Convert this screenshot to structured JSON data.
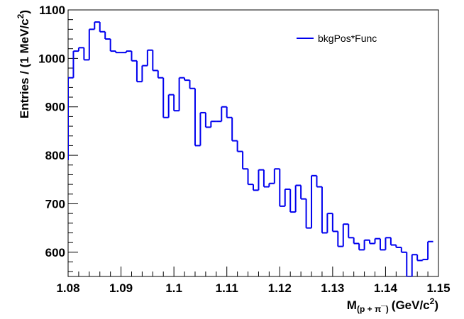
{
  "chart_data": {
    "type": "line",
    "title": "",
    "xlabel": "M",
    "xlabel_sub": "(p + π¯)",
    "xlabel_unit": "(GeV/c",
    "xlabel_unit_sup": "2",
    "xlabel_unit_close": ")",
    "ylabel": "Entries / (1 MeV/c",
    "ylabel_sup": "2",
    "ylabel_close": ")",
    "xlim": [
      1.08,
      1.15
    ],
    "ylim": [
      550,
      1100
    ],
    "xticks": [
      "1.08",
      "1.09",
      "1.1",
      "1.11",
      "1.12",
      "1.13",
      "1.14",
      "1.15"
    ],
    "yticks": [
      "600",
      "700",
      "800",
      "900",
      "1000",
      "1100"
    ],
    "legend_position": "top-right",
    "line_color": "#0000ee",
    "series": [
      {
        "name": "bkgPos*Func",
        "bin_edges_start": 1.08,
        "bin_width": 0.001,
        "values": [
          960,
          1015,
          1022,
          997,
          1060,
          1075,
          1055,
          1040,
          1015,
          1012,
          1012,
          1015,
          995,
          952,
          985,
          1017,
          975,
          960,
          878,
          925,
          892,
          960,
          955,
          938,
          820,
          888,
          858,
          870,
          870,
          900,
          878,
          830,
          808,
          772,
          740,
          728,
          770,
          735,
          742,
          772,
          695,
          730,
          683,
          738,
          710,
          650,
          758,
          735,
          640,
          680,
          643,
          612,
          658,
          630,
          618,
          605,
          625,
          618,
          628,
          605,
          630,
          615,
          610,
          600,
          550,
          595,
          583,
          585,
          622
        ]
      }
    ]
  }
}
